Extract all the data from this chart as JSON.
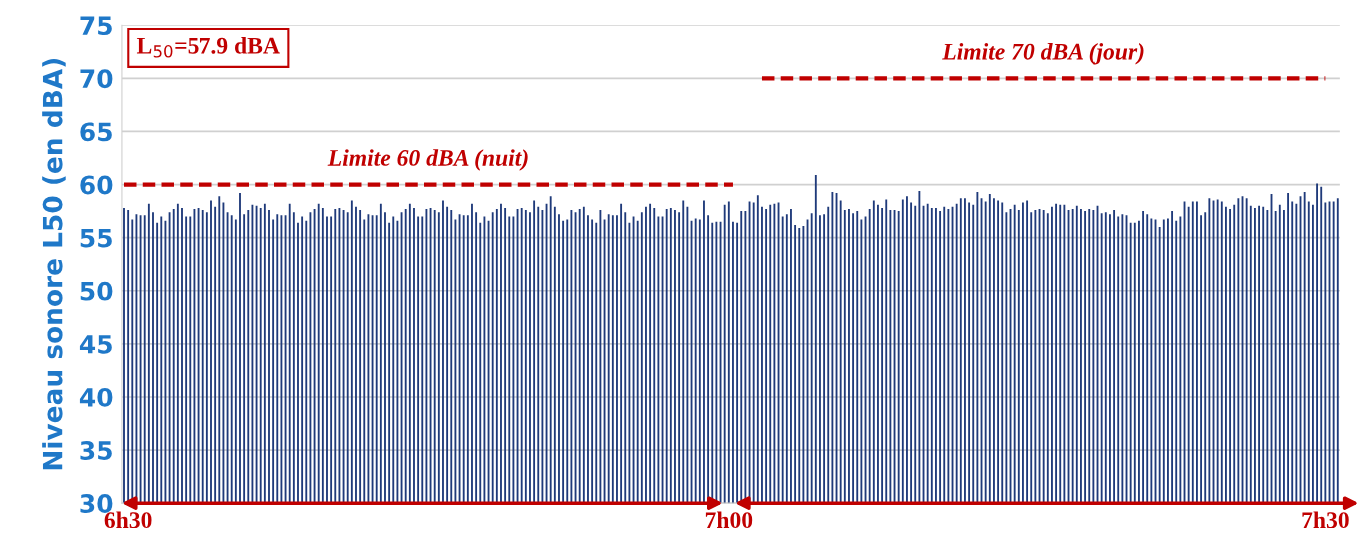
{
  "chart_data": {
    "type": "bar",
    "ylabel": "Niveau sonore L50 (en dBA)",
    "annotations": [
      "L$_{50}$=57.9 dBA"
    ],
    "categories": [
      null,
      "6h30",
      null,
      null,
      null,
      null,
      null,
      null,
      null,
      null,
      null,
      null,
      null,
      null,
      null,
      null,
      null,
      null,
      null,
      null,
      null,
      null,
      null,
      null,
      null,
      null,
      null,
      null,
      null,
      null,
      null,
      null,
      null,
      null,
      null,
      null,
      null,
      null,
      null,
      null,
      null,
      null,
      null,
      null,
      null,
      null,
      null,
      null,
      null,
      null,
      null,
      null,
      null,
      null,
      null,
      null,
      null,
      null,
      null,
      null,
      null,
      null,
      null,
      null,
      null,
      null,
      null,
      null,
      null,
      null,
      null,
      null,
      null,
      null,
      null,
      null,
      null,
      null,
      null,
      null,
      null,
      null,
      null,
      null,
      null,
      null,
      null,
      null,
      null,
      null,
      null,
      null,
      null,
      null,
      null,
      null,
      null,
      null,
      null,
      null,
      null,
      null,
      null,
      null,
      null,
      null,
      null,
      null,
      null,
      null,
      null,
      null,
      null,
      null,
      null,
      null,
      null,
      null,
      null,
      null,
      null,
      null,
      null,
      null,
      null,
      null,
      null,
      null,
      null,
      null,
      null,
      null,
      null,
      null,
      null,
      null,
      null,
      null,
      null,
      null,
      null,
      null,
      null,
      null,
      null,
      null,
      "7h00",
      null,
      null,
      null,
      null,
      null,
      null,
      null,
      null,
      null,
      null,
      null,
      null,
      null,
      null,
      null,
      null,
      null,
      null,
      null,
      null,
      null,
      null,
      null,
      null,
      null,
      null,
      null,
      null,
      null,
      null,
      null,
      null,
      null,
      null,
      null,
      null,
      null,
      null,
      null,
      null,
      null,
      null,
      null,
      null,
      null,
      null,
      null,
      null,
      null,
      null,
      null,
      null,
      null,
      null,
      null,
      null,
      null,
      null,
      null,
      null,
      null,
      null,
      null,
      null,
      null,
      null,
      null,
      null,
      null,
      null,
      null,
      null,
      null,
      null,
      null,
      null,
      null,
      null,
      null,
      null,
      null,
      null,
      null,
      null,
      null,
      null,
      null,
      null,
      null,
      null,
      null,
      null,
      null,
      null,
      null,
      null,
      null,
      null,
      null,
      null,
      null,
      null,
      null,
      null,
      null,
      null,
      null,
      null,
      null,
      null,
      null,
      null,
      null,
      null,
      null,
      null,
      null,
      null,
      null,
      null,
      null,
      null,
      null,
      null,
      null,
      null,
      null,
      null,
      null,
      null,
      null,
      null,
      null,
      null,
      null,
      null,
      null,
      null,
      null,
      null,
      null,
      null,
      null,
      "7h30",
      null,
      null,
      null
    ],
    "series": [
      {
        "color": "#1f3a7a",
        "values": [
          57.8,
          57.6,
          56.7,
          57.2,
          57.1,
          57.1,
          58.2,
          57.4,
          56.4,
          57.0,
          56.6,
          57.4,
          57.7,
          58.2,
          57.8,
          57.0,
          57.0,
          57.7,
          57.8,
          57.6,
          57.4,
          58.5,
          57.9,
          58.9,
          58.3,
          57.4,
          57.1,
          56.7,
          59.2,
          57.2,
          57.6,
          58.1,
          58.0,
          57.8,
          58.2,
          57.6,
          56.7,
          57.2,
          57.1,
          57.1,
          58.2,
          57.4,
          56.4,
          57.0,
          56.6,
          57.4,
          57.7,
          58.2,
          57.8,
          57.0,
          57.0,
          57.7,
          57.8,
          57.6,
          57.4,
          58.5,
          57.9,
          57.6,
          56.7,
          57.2,
          57.1,
          57.1,
          58.2,
          57.4,
          56.4,
          57.0,
          56.6,
          57.4,
          57.7,
          58.2,
          57.8,
          57.0,
          57.0,
          57.7,
          57.8,
          57.6,
          57.4,
          58.5,
          57.9,
          57.6,
          56.7,
          57.2,
          57.1,
          57.1,
          58.2,
          57.4,
          56.4,
          57.0,
          56.6,
          57.4,
          57.7,
          58.2,
          57.8,
          57.0,
          57.0,
          57.7,
          57.8,
          57.6,
          57.4,
          58.5,
          57.9,
          57.6,
          58.2,
          58.9,
          57.9,
          57.2,
          56.6,
          56.7,
          57.6,
          57.4,
          57.7,
          57.9,
          57.1,
          56.7,
          56.4,
          57.6,
          56.7,
          57.2,
          57.1,
          57.1,
          58.2,
          57.4,
          56.4,
          57.0,
          56.6,
          57.4,
          57.9,
          58.2,
          57.8,
          57.0,
          57.0,
          57.7,
          57.8,
          57.6,
          57.4,
          58.5,
          57.9,
          56.6,
          56.8,
          56.7,
          58.5,
          57.1,
          56.4,
          56.5,
          56.5,
          58.1,
          58.4,
          56.5,
          56.4,
          57.5,
          57.5,
          58.4,
          58.3,
          59.0,
          57.9,
          57.7,
          58.1,
          58.2,
          58.3,
          57.0,
          57.2,
          57.7,
          56.2,
          55.9,
          56.1,
          56.7,
          57.3,
          60.9,
          57.1,
          57.2,
          57.9,
          59.3,
          59.2,
          58.5,
          57.6,
          57.7,
          57.3,
          57.5,
          56.7,
          57.0,
          57.7,
          58.5,
          58.1,
          57.8,
          58.6,
          57.6,
          57.6,
          57.5,
          58.6,
          58.9,
          58.3,
          58.0,
          59.4,
          58.0,
          58.2,
          57.8,
          57.8,
          57.5,
          57.9,
          57.7,
          57.9,
          58.2,
          58.7,
          58.7,
          58.3,
          58.1,
          59.3,
          58.7,
          58.4,
          59.1,
          58.7,
          58.5,
          58.3,
          57.4,
          57.7,
          58.1,
          57.6,
          58.3,
          58.5,
          57.4,
          57.6,
          57.7,
          57.6,
          57.3,
          57.9,
          58.2,
          58.1,
          58.1,
          57.6,
          57.7,
          58.0,
          57.7,
          57.5,
          57.7,
          57.6,
          58.0,
          57.3,
          57.4,
          57.2,
          57.6,
          57.0,
          57.2,
          57.1,
          56.4,
          56.4,
          56.6,
          57.5,
          57.2,
          56.8,
          56.7,
          56.0,
          56.7,
          56.8,
          57.5,
          56.6,
          57.0,
          58.4,
          57.9,
          58.4,
          58.4,
          57.1,
          57.4,
          58.7,
          58.5,
          58.6,
          58.4,
          57.9,
          57.7,
          58.1,
          58.7,
          58.9,
          58.7,
          58.0,
          57.8,
          58.0,
          57.9,
          57.6,
          59.1,
          57.5,
          58.1,
          57.6,
          59.2,
          58.4,
          58.2,
          58.9,
          59.3,
          58.4,
          58.1,
          60.1,
          59.8,
          58.3,
          58.4,
          58.4,
          58.7
        ]
      },
      {
        "type": "line",
        "name": "Limite 60 dBA (nuit)",
        "color": "#c00000",
        "line_style": "dashed",
        "values": [
          60,
          60,
          60,
          60,
          60,
          60,
          60,
          60,
          60,
          60,
          60,
          60,
          60,
          60,
          60,
          60,
          60,
          60,
          60,
          60,
          60,
          60,
          60,
          60,
          60,
          60,
          60,
          60,
          60,
          60,
          60,
          60,
          60,
          60,
          60,
          60,
          60,
          60,
          60,
          60,
          60,
          60,
          60,
          60,
          60,
          60,
          60,
          60,
          60,
          60,
          60,
          60,
          60,
          60,
          60,
          60,
          60,
          60,
          60,
          60,
          60,
          60,
          60,
          60,
          60,
          60,
          60,
          60,
          60,
          60,
          60,
          60,
          60,
          60,
          60,
          60,
          60,
          60,
          60,
          60,
          60,
          60,
          60,
          60,
          60,
          60,
          60,
          60,
          60,
          60,
          60,
          60,
          60,
          60,
          60,
          60,
          60,
          60,
          60,
          60,
          60,
          60,
          60,
          60,
          60,
          60,
          60,
          60,
          60,
          60,
          60,
          60,
          60,
          60,
          60,
          60,
          60,
          60,
          60,
          60,
          60,
          60,
          60,
          60,
          60,
          60,
          60,
          60,
          60,
          60,
          60,
          60,
          60,
          60,
          60,
          60,
          60,
          60,
          60,
          60,
          60,
          60,
          60,
          60,
          60,
          60,
          60,
          60,
          null,
          null,
          null,
          null,
          null,
          null,
          null,
          null,
          null,
          null,
          null,
          null,
          null,
          null,
          null,
          null,
          null,
          null,
          null,
          null,
          null,
          null,
          null,
          null,
          null,
          null,
          null,
          null,
          null,
          null,
          null,
          null,
          null,
          null,
          null,
          null,
          null,
          null,
          null,
          null,
          null,
          null,
          null,
          null,
          null,
          null,
          null,
          null,
          null,
          null,
          null,
          null,
          null,
          null,
          null,
          null,
          null,
          null,
          null,
          null,
          null,
          null,
          null,
          null,
          null,
          null,
          null,
          null,
          null,
          null,
          null,
          null,
          null,
          null,
          null,
          null,
          null,
          null,
          null,
          null,
          null,
          null,
          null,
          null,
          null,
          null,
          null,
          null,
          null,
          null,
          null,
          null,
          null,
          null,
          null,
          null,
          null,
          null,
          null,
          null,
          null,
          null,
          null,
          null,
          null,
          null,
          null,
          null,
          null,
          null,
          null,
          null,
          null,
          null,
          null,
          null,
          null,
          null,
          null,
          null,
          null,
          null,
          null,
          null,
          null,
          null,
          null,
          null,
          null,
          null,
          null,
          null,
          null,
          null,
          null,
          null,
          null,
          null,
          null,
          null,
          null,
          null,
          null,
          null,
          null,
          null
        ]
      },
      {
        "type": "line",
        "name": "Limite 70 dBA (jour)",
        "color": "#c00000",
        "line_style": "dashed",
        "values": [
          null,
          null,
          null,
          null,
          null,
          null,
          null,
          null,
          null,
          null,
          null,
          null,
          null,
          null,
          null,
          null,
          null,
          null,
          null,
          null,
          null,
          null,
          null,
          null,
          null,
          null,
          null,
          null,
          null,
          null,
          null,
          null,
          null,
          null,
          null,
          null,
          null,
          null,
          null,
          null,
          null,
          null,
          null,
          null,
          null,
          null,
          null,
          null,
          null,
          null,
          null,
          null,
          null,
          null,
          null,
          null,
          null,
          null,
          null,
          null,
          null,
          null,
          null,
          null,
          null,
          null,
          null,
          null,
          null,
          null,
          null,
          null,
          null,
          null,
          null,
          null,
          null,
          null,
          null,
          null,
          null,
          null,
          null,
          null,
          null,
          null,
          null,
          null,
          null,
          null,
          null,
          null,
          null,
          null,
          null,
          null,
          null,
          null,
          null,
          null,
          null,
          null,
          null,
          null,
          null,
          null,
          null,
          null,
          null,
          null,
          null,
          null,
          null,
          null,
          null,
          null,
          null,
          null,
          null,
          null,
          null,
          null,
          null,
          null,
          null,
          null,
          null,
          null,
          null,
          null,
          null,
          null,
          null,
          null,
          null,
          null,
          null,
          null,
          null,
          null,
          null,
          null,
          null,
          null,
          null,
          null,
          null,
          null,
          null,
          null,
          null,
          null,
          null,
          null,
          70,
          70,
          70,
          70,
          70,
          70,
          70,
          70,
          70,
          70,
          70,
          70,
          70,
          70,
          70,
          70,
          70,
          70,
          70,
          70,
          70,
          70,
          70,
          70,
          70,
          70,
          70,
          70,
          70,
          70,
          70,
          70,
          70,
          70,
          70,
          70,
          70,
          70,
          70,
          70,
          70,
          70,
          70,
          70,
          70,
          70,
          70,
          70,
          70,
          70,
          70,
          70,
          70,
          70,
          70,
          70,
          70,
          70,
          70,
          70,
          70,
          70,
          70,
          70,
          70,
          70,
          70,
          70,
          70,
          70,
          70,
          70,
          70,
          70,
          70,
          70,
          70,
          70,
          70,
          70,
          70,
          70,
          70,
          70,
          70,
          70,
          70,
          70,
          70,
          70,
          70,
          70,
          70,
          70,
          70,
          70,
          70,
          70,
          70,
          70,
          70,
          70,
          70,
          70,
          70,
          70,
          70,
          70,
          70,
          70,
          70,
          70,
          70,
          70,
          70,
          70,
          70,
          70,
          70,
          70,
          70,
          70,
          70,
          70,
          70,
          70,
          70,
          70,
          70,
          70,
          70,
          70,
          70,
          70,
          70,
          70,
          70,
          null,
          null,
          null
        ]
      }
    ],
    "ylim": [
      30,
      75
    ],
    "yticks": [
      30,
      35,
      40,
      45,
      50,
      55,
      60,
      65,
      70,
      75
    ],
    "grid": "y",
    "legend": false
  }
}
